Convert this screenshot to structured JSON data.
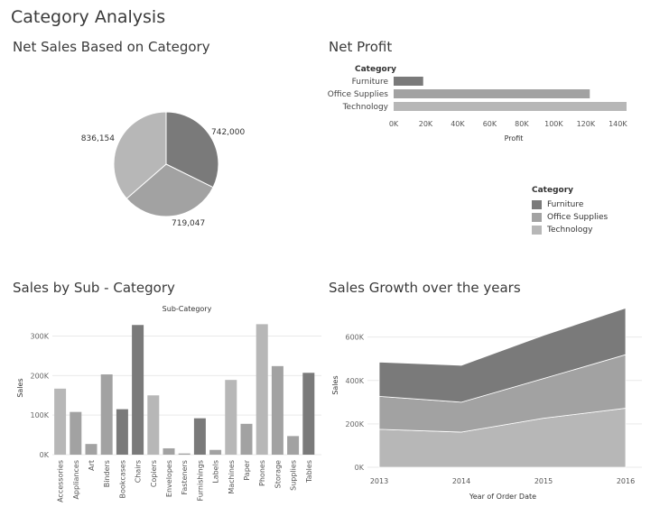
{
  "dashboard": {
    "title": "Category Analysis"
  },
  "colors": {
    "furniture": "#7a7a7a",
    "office_supplies": "#a2a2a2",
    "technology": "#b7b7b7",
    "grid": "#e9e9e9",
    "axis_text": "#666666"
  },
  "panels": {
    "net_sales": {
      "title": "Net Sales Based on Category"
    },
    "net_profit": {
      "title": "Net Profit"
    },
    "sub_category": {
      "title": "Sales by Sub - Category"
    },
    "growth": {
      "title": "Sales Growth over the years"
    }
  },
  "legend": {
    "title": "Category",
    "items": [
      {
        "label": "Furniture",
        "color": "#7a7a7a"
      },
      {
        "label": "Office Supplies",
        "color": "#a2a2a2"
      },
      {
        "label": "Technology",
        "color": "#b7b7b7"
      }
    ]
  },
  "chart_data": [
    {
      "id": "net_sales",
      "type": "pie",
      "title": "Net Sales Based on Category",
      "slices": [
        {
          "category": "Furniture",
          "value": 742000,
          "label": "742,000",
          "color": "#7a7a7a"
        },
        {
          "category": "Office Supplies",
          "value": 719047,
          "label": "719,047",
          "color": "#a2a2a2"
        },
        {
          "category": "Technology",
          "value": 836154,
          "label": "836,154",
          "color": "#b7b7b7"
        }
      ]
    },
    {
      "id": "net_profit",
      "type": "bar",
      "orientation": "horizontal",
      "title": "Net Profit",
      "category_header": "Category",
      "xlabel": "Profit",
      "categories": [
        "Furniture",
        "Office Supplies",
        "Technology"
      ],
      "values": [
        18450,
        122490,
        145455
      ],
      "colors": [
        "#7a7a7a",
        "#a2a2a2",
        "#b7b7b7"
      ],
      "xlim": [
        0,
        145455
      ],
      "ticks": [
        0,
        20000,
        40000,
        60000,
        80000,
        100000,
        120000,
        140000
      ],
      "tick_labels": [
        "0K",
        "20K",
        "40K",
        "60K",
        "80K",
        "100K",
        "120K",
        "140K"
      ]
    },
    {
      "id": "sub_category",
      "type": "bar",
      "title": "Sales by Sub - Category",
      "column_header": "Sub-Category",
      "ylabel": "Sales",
      "categories": [
        "Accessories",
        "Appliances",
        "Art",
        "Binders",
        "Bookcases",
        "Chairs",
        "Copiers",
        "Envelopes",
        "Fasteners",
        "Furnishings",
        "Labels",
        "Machines",
        "Paper",
        "Phones",
        "Storage",
        "Supplies",
        "Tables"
      ],
      "values": [
        167000,
        108000,
        27000,
        203000,
        115000,
        328000,
        150000,
        16000,
        3000,
        92000,
        12000,
        189000,
        78000,
        330000,
        224000,
        47000,
        207000
      ],
      "category_group": [
        "Technology",
        "Office Supplies",
        "Office Supplies",
        "Office Supplies",
        "Furniture",
        "Furniture",
        "Technology",
        "Office Supplies",
        "Office Supplies",
        "Furniture",
        "Office Supplies",
        "Technology",
        "Office Supplies",
        "Technology",
        "Office Supplies",
        "Office Supplies",
        "Furniture"
      ],
      "ylim": [
        0,
        340000
      ],
      "ticks": [
        0,
        100000,
        200000,
        300000
      ],
      "tick_labels": [
        "0K",
        "100K",
        "200K",
        "300K"
      ]
    },
    {
      "id": "growth",
      "type": "area",
      "stacked": true,
      "title": "Sales Growth over the years",
      "xlabel": "Year of Order Date",
      "ylabel": "Sales",
      "x": [
        2013,
        2014,
        2015,
        2016
      ],
      "x_tick_labels": [
        "2013",
        "2014",
        "2015",
        "2016"
      ],
      "series": [
        {
          "name": "Technology",
          "values": [
            175000,
            162000,
            226000,
            272000
          ],
          "color": "#b7b7b7"
        },
        {
          "name": "Office Supplies",
          "values": [
            152000,
            138000,
            183000,
            247000
          ],
          "color": "#a2a2a2"
        },
        {
          "name": "Furniture",
          "values": [
            158000,
            170000,
            199000,
            215000
          ],
          "color": "#7a7a7a"
        }
      ],
      "ylim": [
        0,
        740000
      ],
      "ticks": [
        0,
        200000,
        400000,
        600000
      ],
      "tick_labels": [
        "0K",
        "200K",
        "400K",
        "600K"
      ]
    }
  ]
}
